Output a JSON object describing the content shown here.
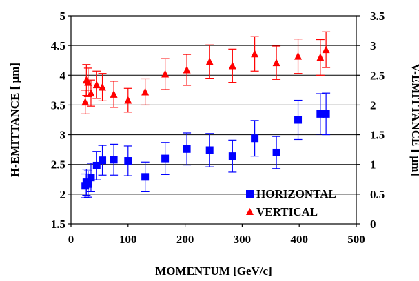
{
  "chart_data": {
    "type": "scatter",
    "title": "",
    "xlabel": "MOMENTUM [GeV/c]",
    "ylabel_left": "H-EMITTANCE [ μm]",
    "ylabel_right": "V-EMITTANCE [ μm]",
    "xlim": [
      0,
      500
    ],
    "ylim_left": [
      1.5,
      5
    ],
    "ylim_right": [
      0,
      3.5
    ],
    "xticks": [
      "0",
      "100",
      "200",
      "300",
      "400",
      "500"
    ],
    "yticks_left": [
      "1.5",
      "2",
      "2.5",
      "3",
      "3.5",
      "4",
      "4.5",
      "5"
    ],
    "yticks_right": [
      "0",
      "0.5",
      "1",
      "1.5",
      "2",
      "2.5",
      "3",
      "3.5"
    ],
    "grid": "horizontal",
    "legend": "bottom-right",
    "series": [
      {
        "name": "HORIZONTAL",
        "axis": "left",
        "marker": "square",
        "color": "#0000ff",
        "points": [
          {
            "x": 25,
            "y": 2.14,
            "err": 0.2
          },
          {
            "x": 27,
            "y": 2.2,
            "err": 0.22
          },
          {
            "x": 30,
            "y": 2.17,
            "err": 0.22
          },
          {
            "x": 35,
            "y": 2.28,
            "err": 0.24
          },
          {
            "x": 45,
            "y": 2.48,
            "err": 0.24
          },
          {
            "x": 55,
            "y": 2.57,
            "err": 0.25
          },
          {
            "x": 75,
            "y": 2.58,
            "err": 0.26
          },
          {
            "x": 100,
            "y": 2.56,
            "err": 0.25
          },
          {
            "x": 130,
            "y": 2.29,
            "err": 0.25
          },
          {
            "x": 165,
            "y": 2.6,
            "err": 0.27
          },
          {
            "x": 203,
            "y": 2.76,
            "err": 0.27
          },
          {
            "x": 243,
            "y": 2.74,
            "err": 0.28
          },
          {
            "x": 283,
            "y": 2.64,
            "err": 0.27
          },
          {
            "x": 322,
            "y": 2.94,
            "err": 0.3
          },
          {
            "x": 360,
            "y": 2.7,
            "err": 0.27
          },
          {
            "x": 398,
            "y": 3.25,
            "err": 0.33
          },
          {
            "x": 437,
            "y": 3.35,
            "err": 0.34
          },
          {
            "x": 447,
            "y": 3.35,
            "err": 0.35
          }
        ]
      },
      {
        "name": "VERTICAL",
        "axis": "right",
        "marker": "triangle",
        "color": "#ff0000",
        "points": [
          {
            "x": 25,
            "y": 2.05,
            "err": 0.2
          },
          {
            "x": 27,
            "y": 2.42,
            "err": 0.26
          },
          {
            "x": 30,
            "y": 2.38,
            "err": 0.24
          },
          {
            "x": 35,
            "y": 2.2,
            "err": 0.22
          },
          {
            "x": 45,
            "y": 2.34,
            "err": 0.23
          },
          {
            "x": 55,
            "y": 2.3,
            "err": 0.23
          },
          {
            "x": 75,
            "y": 2.18,
            "err": 0.22
          },
          {
            "x": 100,
            "y": 2.08,
            "err": 0.2
          },
          {
            "x": 130,
            "y": 2.22,
            "err": 0.22
          },
          {
            "x": 165,
            "y": 2.52,
            "err": 0.26
          },
          {
            "x": 203,
            "y": 2.59,
            "err": 0.26
          },
          {
            "x": 243,
            "y": 2.73,
            "err": 0.28
          },
          {
            "x": 283,
            "y": 2.66,
            "err": 0.28
          },
          {
            "x": 322,
            "y": 2.86,
            "err": 0.29
          },
          {
            "x": 360,
            "y": 2.71,
            "err": 0.28
          },
          {
            "x": 398,
            "y": 2.82,
            "err": 0.29
          },
          {
            "x": 437,
            "y": 2.8,
            "err": 0.3
          },
          {
            "x": 447,
            "y": 2.93,
            "err": 0.3
          }
        ]
      }
    ]
  }
}
